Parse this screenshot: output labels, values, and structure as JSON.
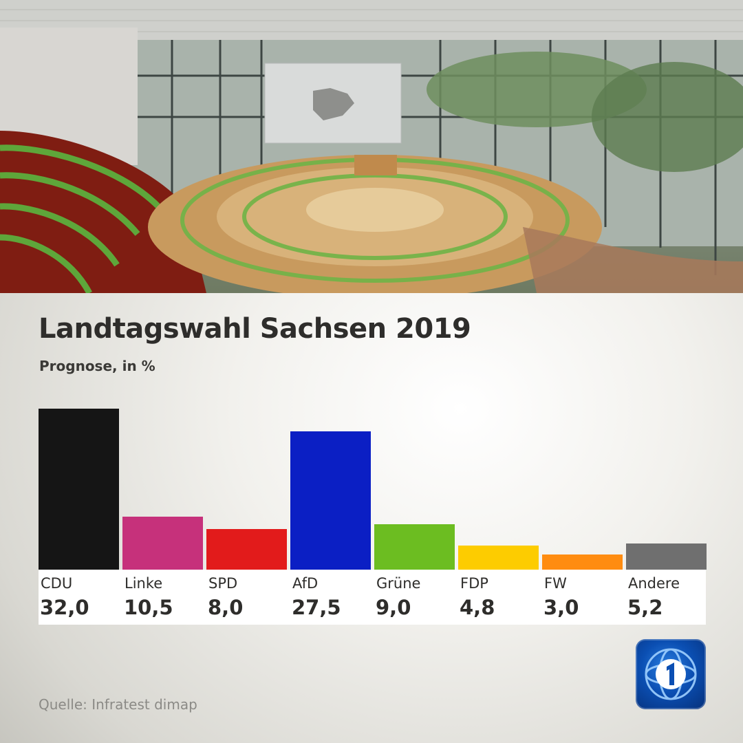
{
  "header": {
    "title": "Landtagswahl Sachsen 2019",
    "subtitle": "Prognose, in %"
  },
  "photo": {
    "icon": "parliament-chamber-photo"
  },
  "chart_data": {
    "type": "bar",
    "title": "Landtagswahl Sachsen 2019",
    "subtitle": "Prognose, in %",
    "categories": [
      "CDU",
      "Linke",
      "SPD",
      "AfD",
      "Grüne",
      "FDP",
      "FW",
      "Andere"
    ],
    "values": [
      32.0,
      10.5,
      8.0,
      27.5,
      9.0,
      4.8,
      3.0,
      5.2
    ],
    "value_labels": [
      "32,0",
      "10,5",
      "8,0",
      "27,5",
      "9,0",
      "4,8",
      "3,0",
      "5,2"
    ],
    "colors": [
      "#151515",
      "#c6317b",
      "#e21b1b",
      "#0b1fc4",
      "#6cbd21",
      "#fdcc00",
      "#ff8c10",
      "#6f6f6f"
    ],
    "ylim": [
      0,
      32.0
    ],
    "grid": false,
    "legend": "none"
  },
  "footer": {
    "source": "Quelle: Infratest dimap",
    "logo_icon": "tagesschau-logo-icon"
  }
}
